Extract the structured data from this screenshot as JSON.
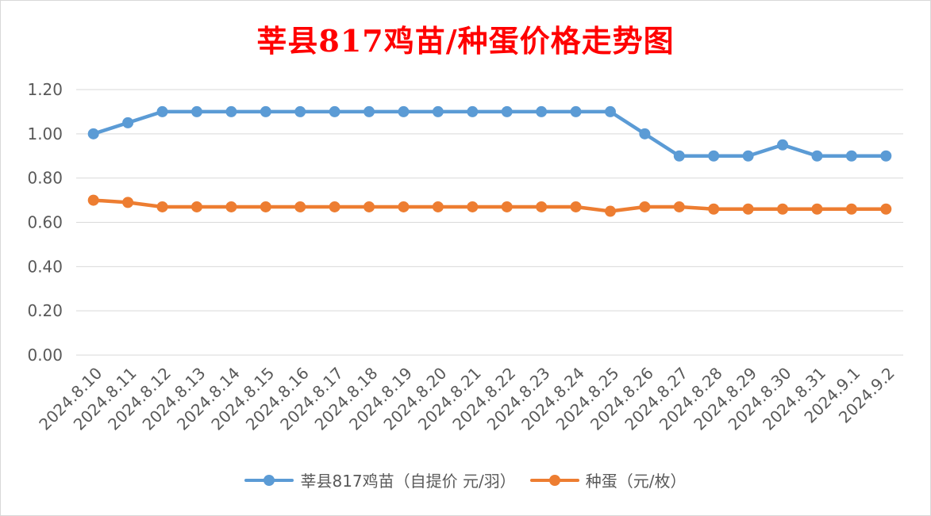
{
  "chart_data": {
    "type": "line",
    "title": "莘县817鸡苗/种蛋价格走势图",
    "categories": [
      "2024.8.10",
      "2024.8.11",
      "2024.8.12",
      "2024.8.13",
      "2024.8.14",
      "2024.8.15",
      "2024.8.16",
      "2024.8.17",
      "2024.8.18",
      "2024.8.19",
      "2024.8.20",
      "2024.8.21",
      "2024.8.22",
      "2024.8.23",
      "2024.8.24",
      "2024.8.25",
      "2024.8.26",
      "2024.8.27",
      "2024.8.28",
      "2024.8.29",
      "2024.8.30",
      "2024.8.31",
      "2024.9.1",
      "2024.9.2"
    ],
    "series": [
      {
        "name": "莘县817鸡苗（自提价 元/羽）",
        "color": "#5b9bd5",
        "values": [
          1.0,
          1.05,
          1.1,
          1.1,
          1.1,
          1.1,
          1.1,
          1.1,
          1.1,
          1.1,
          1.1,
          1.1,
          1.1,
          1.1,
          1.1,
          1.1,
          1.0,
          0.9,
          0.9,
          0.9,
          0.95,
          0.9,
          0.9,
          0.9
        ]
      },
      {
        "name": "种蛋（元/枚）",
        "color": "#ed7d31",
        "values": [
          0.7,
          0.69,
          0.67,
          0.67,
          0.67,
          0.67,
          0.67,
          0.67,
          0.67,
          0.67,
          0.67,
          0.67,
          0.67,
          0.67,
          0.67,
          0.65,
          0.67,
          0.67,
          0.66,
          0.66,
          0.66,
          0.66,
          0.66,
          0.66
        ]
      }
    ],
    "ylim": [
      0,
      1.2
    ],
    "yticks": [
      "0.00",
      "0.20",
      "0.40",
      "0.60",
      "0.80",
      "1.00",
      "1.20"
    ],
    "grid": true,
    "legend": "bottom"
  }
}
